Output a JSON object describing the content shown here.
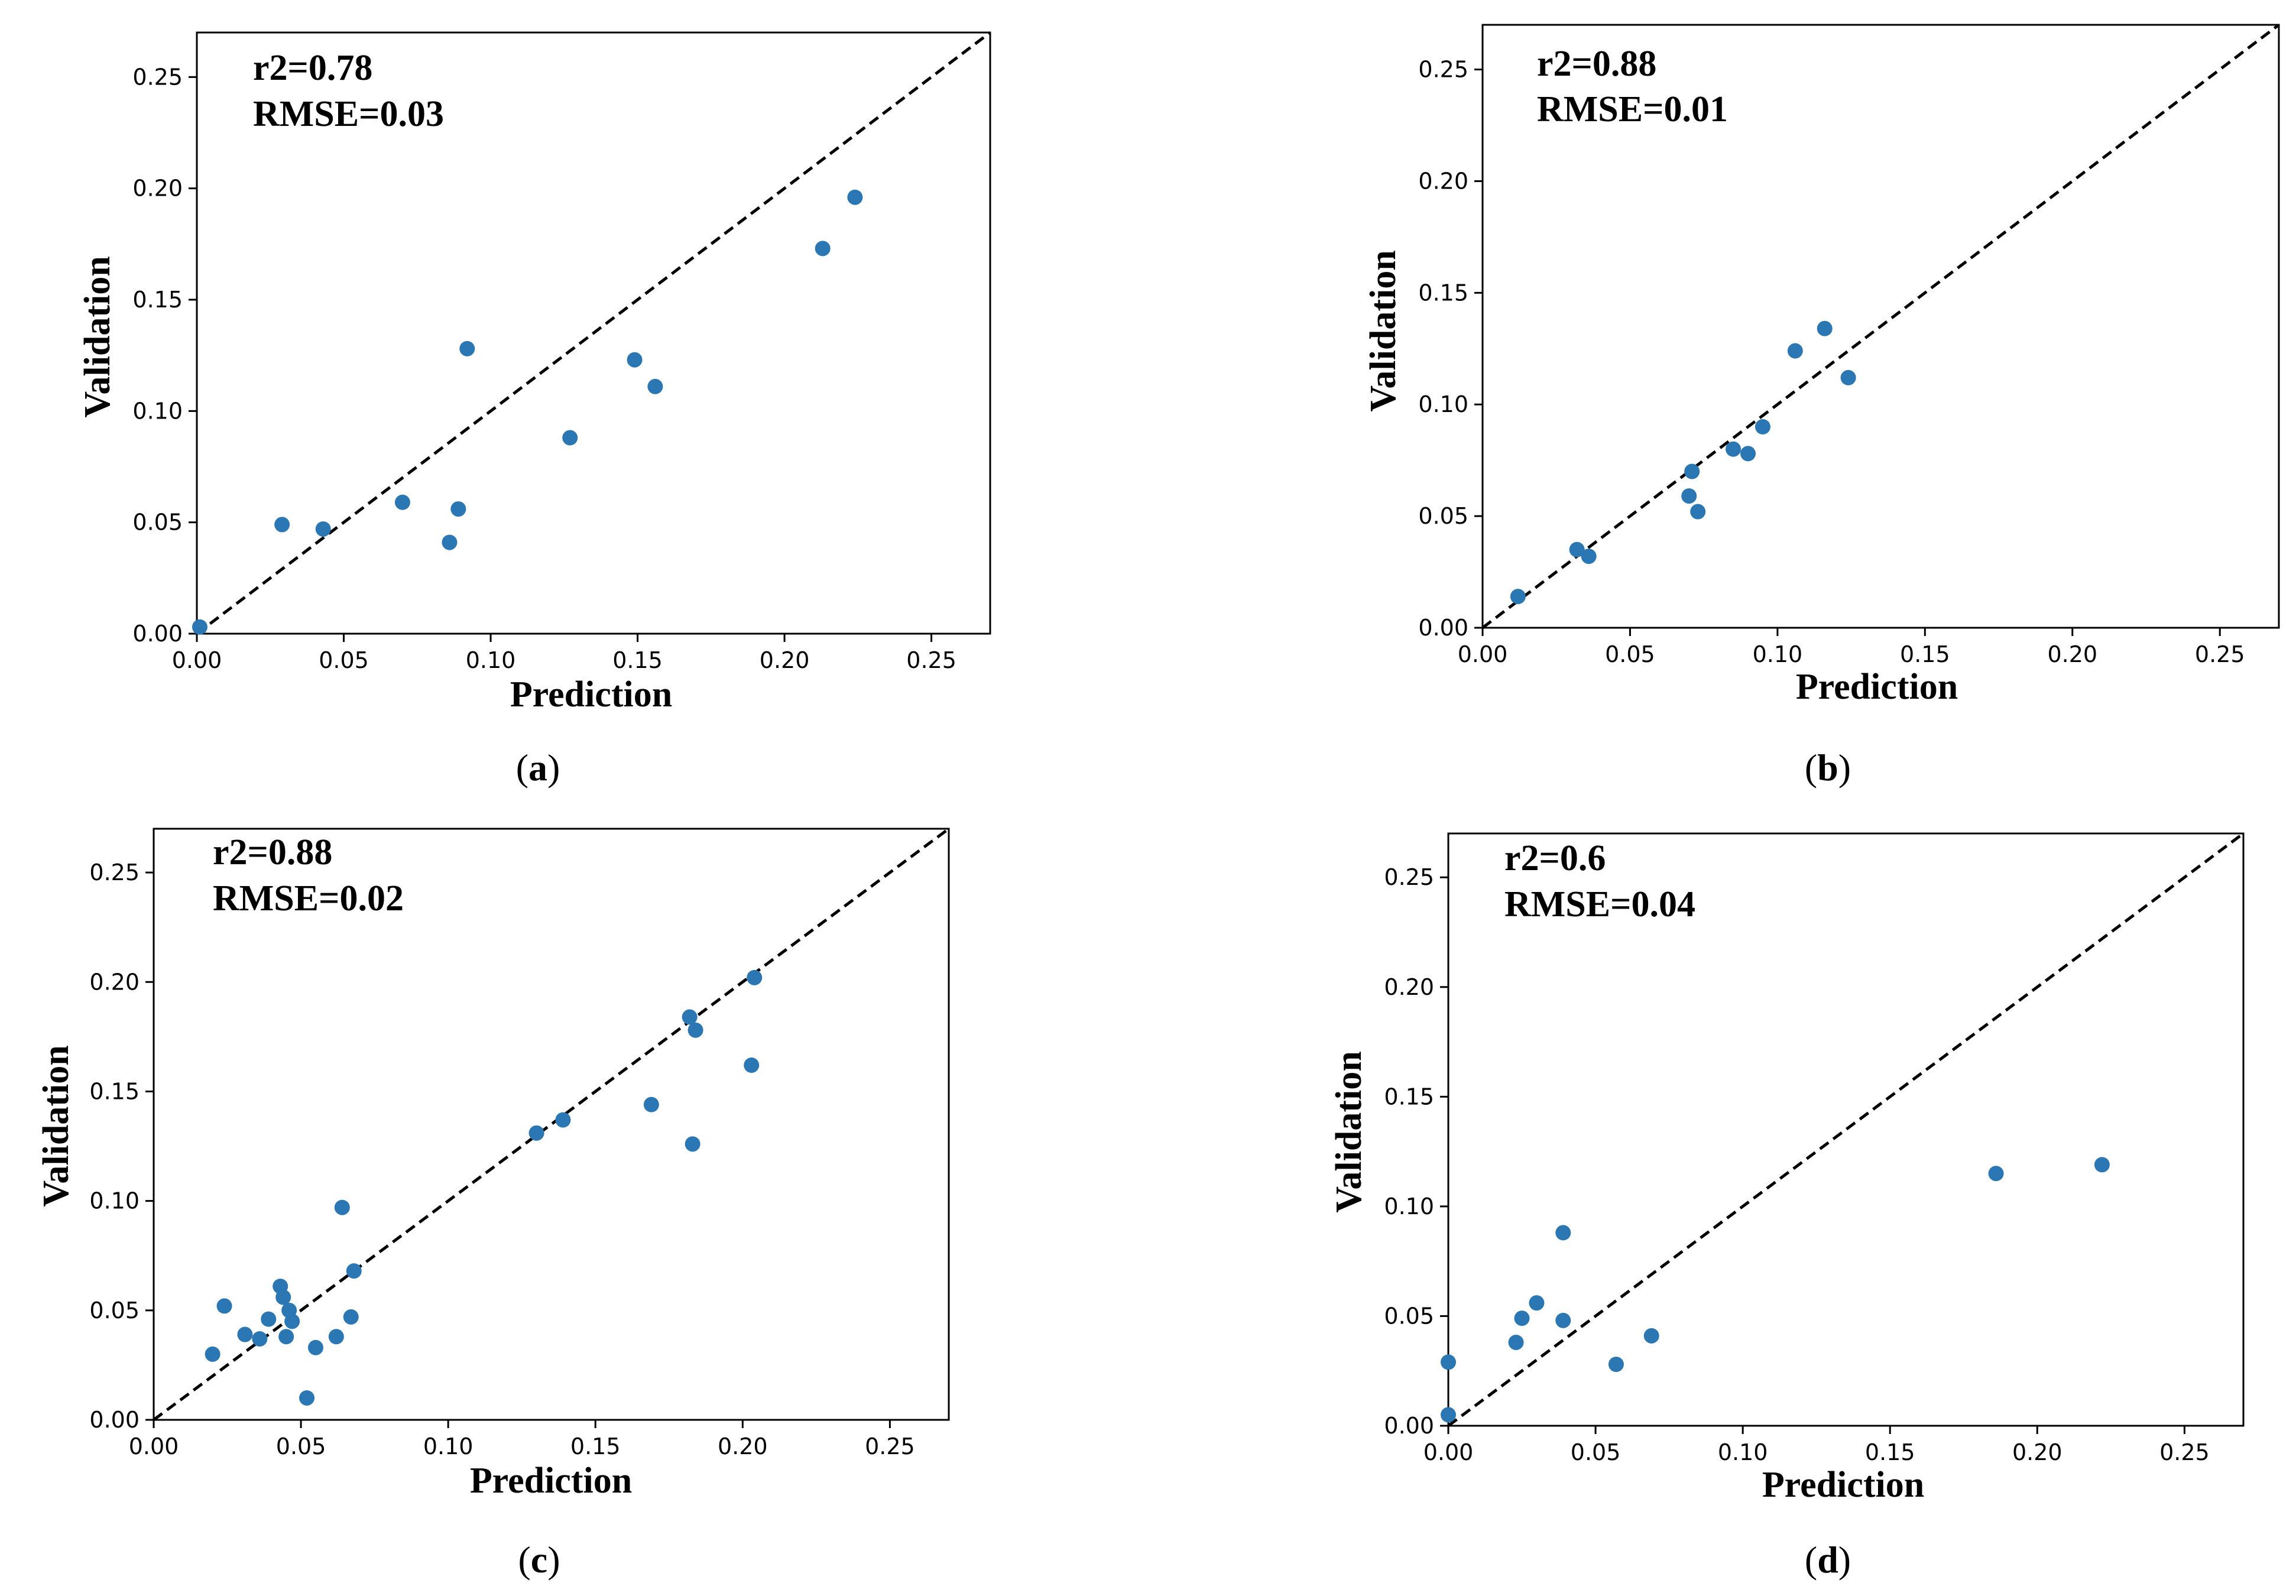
{
  "figure": {
    "panel_count": 4
  },
  "colors": {
    "points": "#2a77b4",
    "diagonal": "#000000",
    "axes": "#000000"
  },
  "chart_data": [
    {
      "id": "a",
      "type": "scatter",
      "caption": "a",
      "title": "",
      "stats": {
        "r2": "r2=0.78",
        "rmse": "RMSE=0.03"
      },
      "xlabel": "Prediction",
      "ylabel": "Validation",
      "xlim": [
        0,
        0.27
      ],
      "ylim": [
        0,
        0.27
      ],
      "xticks": [
        "0.00",
        "0.05",
        "0.10",
        "0.15",
        "0.20",
        "0.25"
      ],
      "yticks": [
        "0.00",
        "0.05",
        "0.10",
        "0.15",
        "0.20",
        "0.25"
      ],
      "diagonal": "y = x (dashed)",
      "points": [
        [
          0.001,
          0.003
        ],
        [
          0.029,
          0.049
        ],
        [
          0.043,
          0.047
        ],
        [
          0.07,
          0.059
        ],
        [
          0.086,
          0.041
        ],
        [
          0.089,
          0.056
        ],
        [
          0.092,
          0.128
        ],
        [
          0.127,
          0.088
        ],
        [
          0.149,
          0.123
        ],
        [
          0.156,
          0.111
        ],
        [
          0.213,
          0.173
        ],
        [
          0.224,
          0.196
        ]
      ]
    },
    {
      "id": "b",
      "type": "scatter",
      "caption": "b",
      "title": "",
      "stats": {
        "r2": "r2=0.88",
        "rmse": "RMSE=0.01"
      },
      "xlabel": "Prediction",
      "ylabel": "Validation",
      "xlim": [
        0,
        0.27
      ],
      "ylim": [
        0,
        0.27
      ],
      "xticks": [
        "0.00",
        "0.05",
        "0.10",
        "0.15",
        "0.20",
        "0.25"
      ],
      "yticks": [
        "0.00",
        "0.05",
        "0.10",
        "0.15",
        "0.20",
        "0.25"
      ],
      "diagonal": "y = x (dashed)",
      "points": [
        [
          0.012,
          0.014
        ],
        [
          0.032,
          0.035
        ],
        [
          0.036,
          0.032
        ],
        [
          0.07,
          0.059
        ],
        [
          0.071,
          0.07
        ],
        [
          0.073,
          0.052
        ],
        [
          0.085,
          0.08
        ],
        [
          0.09,
          0.078
        ],
        [
          0.095,
          0.09
        ],
        [
          0.106,
          0.124
        ],
        [
          0.116,
          0.134
        ],
        [
          0.124,
          0.112
        ]
      ]
    },
    {
      "id": "c",
      "type": "scatter",
      "caption": "c",
      "title": "",
      "stats": {
        "r2": "r2=0.88",
        "rmse": "RMSE=0.02"
      },
      "xlabel": "Prediction",
      "ylabel": "Validation",
      "xlim": [
        0,
        0.27
      ],
      "ylim": [
        0,
        0.27
      ],
      "xticks": [
        "0.00",
        "0.05",
        "0.10",
        "0.15",
        "0.20",
        "0.25"
      ],
      "yticks": [
        "0.00",
        "0.05",
        "0.10",
        "0.15",
        "0.20",
        "0.25"
      ],
      "diagonal": "y = x (dashed)",
      "points": [
        [
          0.02,
          0.03
        ],
        [
          0.024,
          0.052
        ],
        [
          0.031,
          0.039
        ],
        [
          0.036,
          0.037
        ],
        [
          0.039,
          0.046
        ],
        [
          0.043,
          0.061
        ],
        [
          0.044,
          0.056
        ],
        [
          0.045,
          0.038
        ],
        [
          0.046,
          0.05
        ],
        [
          0.047,
          0.045
        ],
        [
          0.052,
          0.01
        ],
        [
          0.055,
          0.033
        ],
        [
          0.062,
          0.038
        ],
        [
          0.064,
          0.097
        ],
        [
          0.067,
          0.047
        ],
        [
          0.068,
          0.068
        ],
        [
          0.13,
          0.131
        ],
        [
          0.139,
          0.137
        ],
        [
          0.169,
          0.144
        ],
        [
          0.182,
          0.184
        ],
        [
          0.183,
          0.126
        ],
        [
          0.184,
          0.178
        ],
        [
          0.203,
          0.162
        ],
        [
          0.204,
          0.202
        ]
      ]
    },
    {
      "id": "d",
      "type": "scatter",
      "caption": "d",
      "title": "",
      "stats": {
        "r2": "r2=0.6",
        "rmse": "RMSE=0.04"
      },
      "xlabel": "Prediction",
      "ylabel": "Validation",
      "xlim": [
        0,
        0.27
      ],
      "ylim": [
        0,
        0.27
      ],
      "xticks": [
        "0.00",
        "0.05",
        "0.10",
        "0.15",
        "0.20",
        "0.25"
      ],
      "yticks": [
        "0.00",
        "0.05",
        "0.10",
        "0.15",
        "0.20",
        "0.25"
      ],
      "diagonal": "y = x (dashed)",
      "points": [
        [
          0.0,
          0.029
        ],
        [
          0.0,
          0.005
        ],
        [
          0.023,
          0.038
        ],
        [
          0.025,
          0.049
        ],
        [
          0.03,
          0.056
        ],
        [
          0.039,
          0.088
        ],
        [
          0.039,
          0.048
        ],
        [
          0.057,
          0.028
        ],
        [
          0.069,
          0.041
        ],
        [
          0.186,
          0.115
        ],
        [
          0.222,
          0.119
        ]
      ]
    }
  ]
}
